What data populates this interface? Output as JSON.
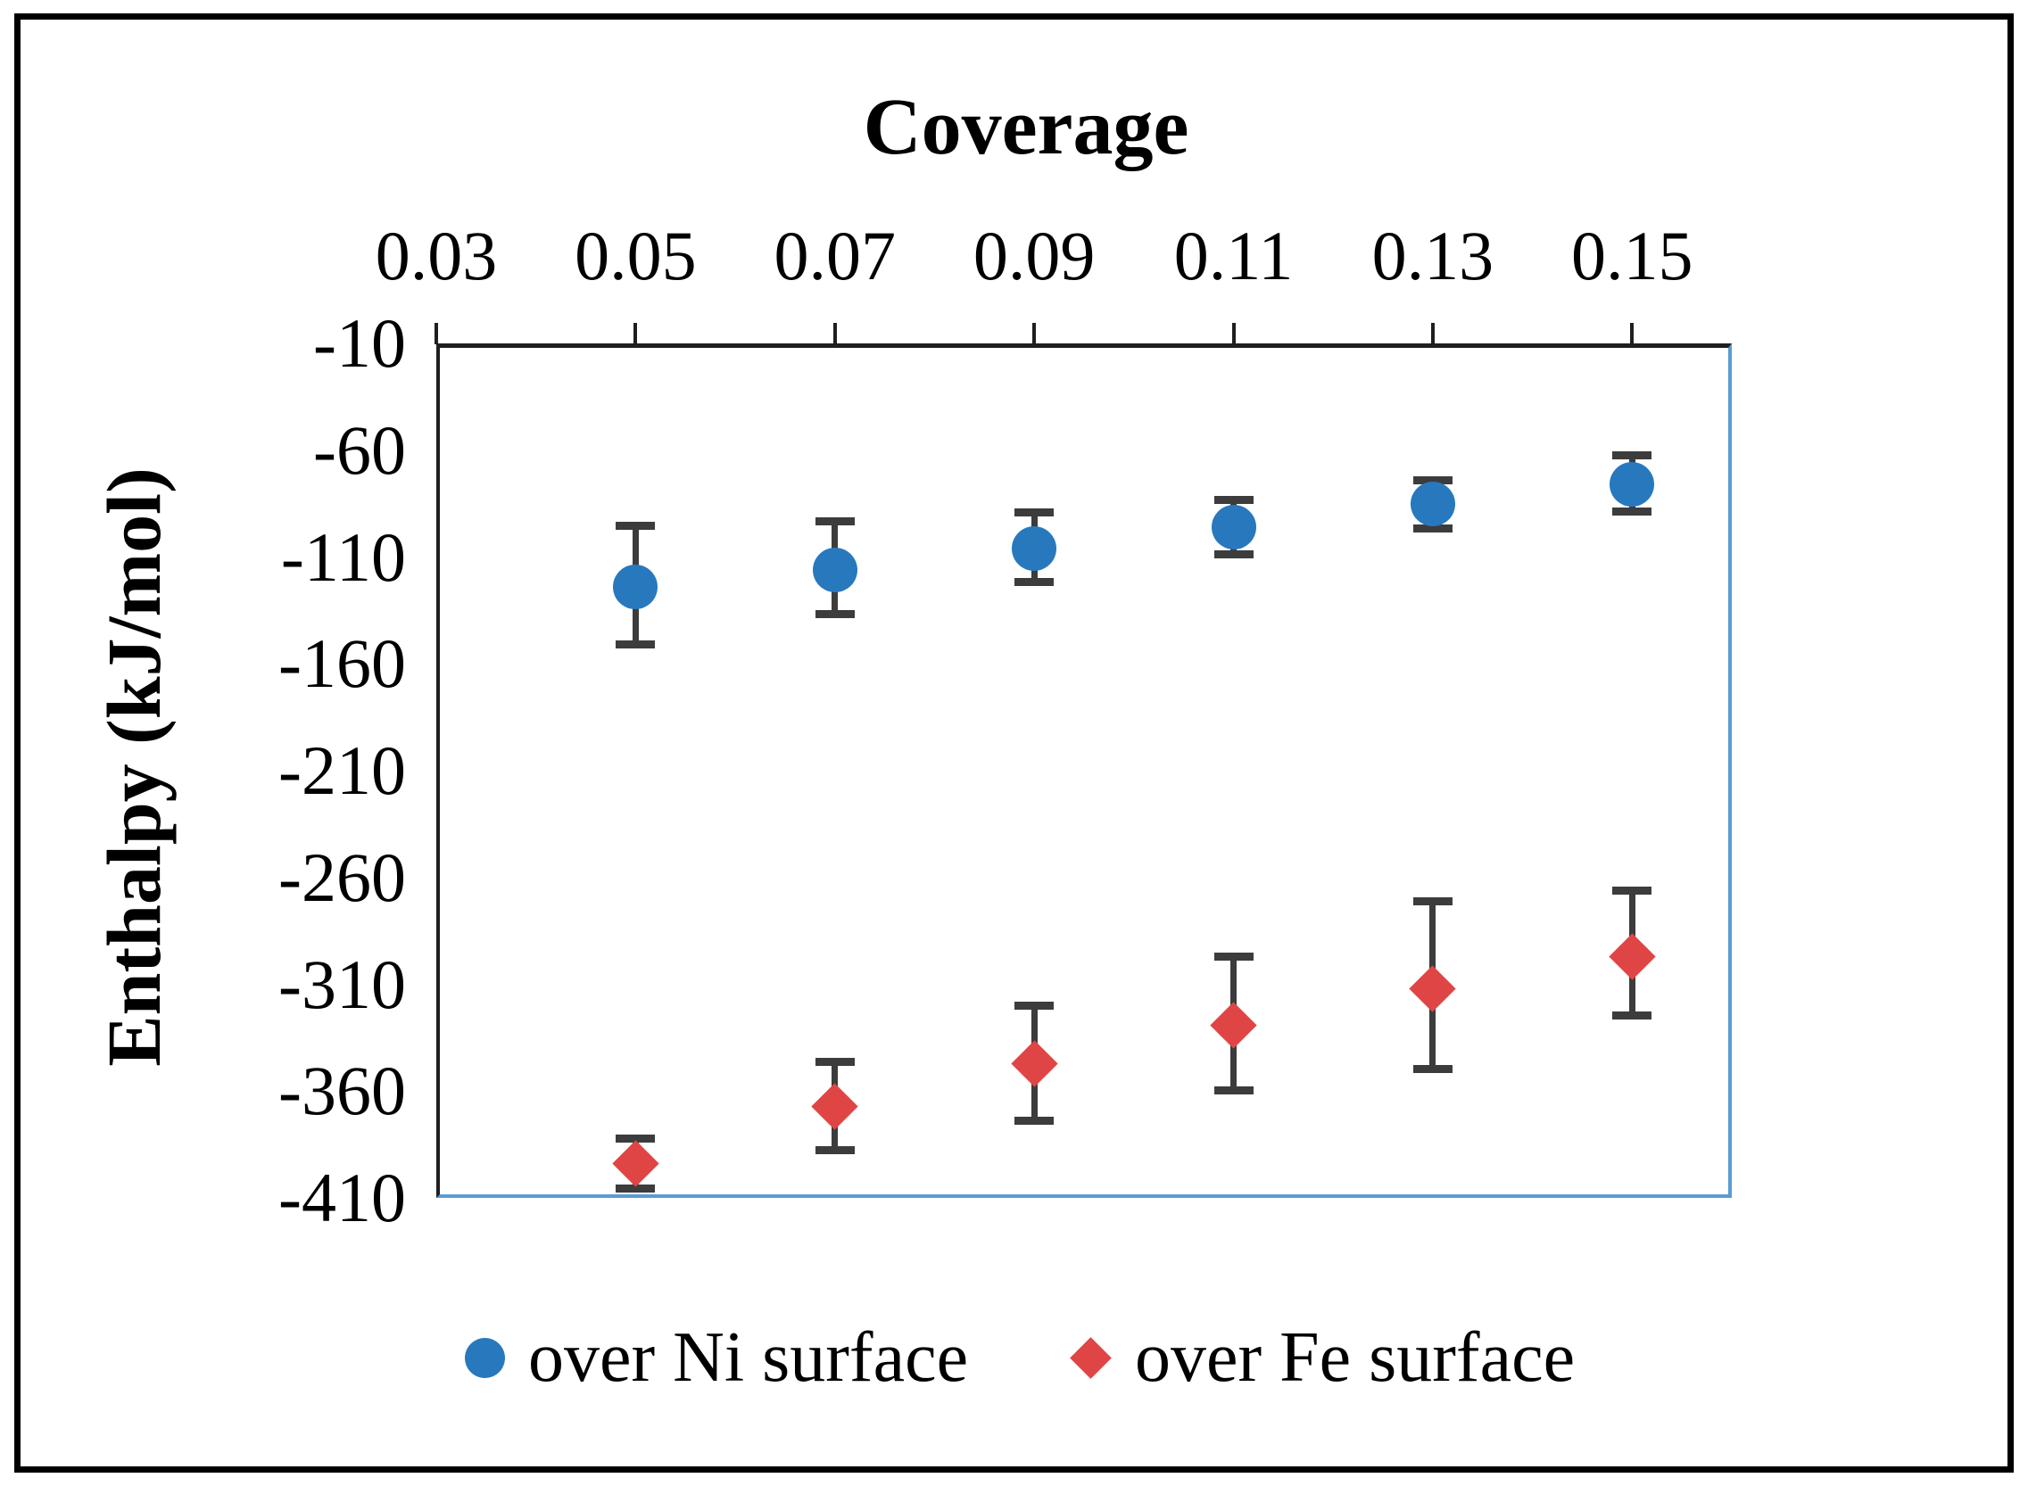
{
  "figure": {
    "title": "Coverage",
    "y_axis_label": "Enthalpy (kJ/mol)"
  },
  "chart_data": {
    "type": "scatter",
    "title": "Coverage",
    "xlabel": "Coverage",
    "ylabel": "Enthalpy (kJ/mol)",
    "grid": false,
    "legend_position": "bottom",
    "x_axis": {
      "position": "top",
      "min": 0.03,
      "max": 0.16,
      "tick_values": [
        0.03,
        0.05,
        0.07,
        0.09,
        0.11,
        0.13,
        0.15
      ],
      "ticks": [
        "0.03",
        "0.05",
        "0.07",
        "0.09",
        "0.11",
        "0.13",
        "0.15"
      ]
    },
    "y_axis": {
      "position": "left",
      "min": -410,
      "max": -10,
      "tick_values": [
        -10,
        -60,
        -110,
        -160,
        -210,
        -260,
        -310,
        -360,
        -410
      ],
      "ticks": [
        "-10",
        "-60",
        "-110",
        "-160",
        "-210",
        "-260",
        "-310",
        "-360",
        "-410"
      ]
    },
    "series": [
      {
        "id": "ni",
        "name": "over Ni surface",
        "marker": "circle",
        "color": "#2878BE",
        "x": [
          0.05,
          0.07,
          0.09,
          0.11,
          0.13,
          0.15
        ],
        "y": [
          -124,
          -116,
          -106,
          -96,
          -85,
          -76
        ],
        "err_up": [
          29,
          23,
          17,
          13,
          11,
          14
        ],
        "err_down": [
          27,
          21,
          16,
          13,
          12,
          13
        ]
      },
      {
        "id": "fe",
        "name": "over Fe surface",
        "marker": "diamond",
        "color": "#E04545",
        "x": [
          0.05,
          0.07,
          0.09,
          0.11,
          0.13,
          0.15
        ],
        "y": [
          -394,
          -367,
          -347,
          -329,
          -312,
          -297
        ],
        "err_up": [
          12,
          21,
          27,
          32,
          41,
          31
        ],
        "err_down": [
          12,
          21,
          27,
          31,
          38,
          28
        ]
      }
    ],
    "error_bar_color": "#3c3c3c",
    "plot_border_color": "#5B9BD5",
    "axis_color": "#1f1f1f"
  }
}
